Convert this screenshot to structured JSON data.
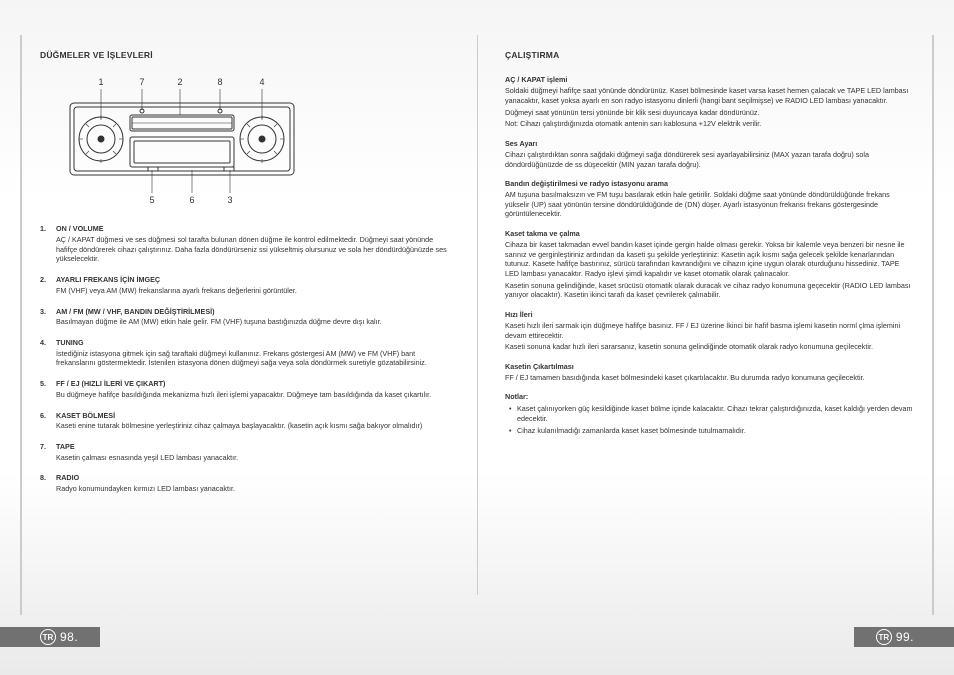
{
  "left": {
    "title": "DÜĞMELER VE İŞLEVLERİ",
    "diagram_labels": [
      "1",
      "7",
      "2",
      "8",
      "4",
      "5",
      "6",
      "3"
    ],
    "items": [
      {
        "n": "1.",
        "head": "ON / VOLUME",
        "body": "AÇ / KAPAT düğmesi ve ses düğmesi sol tarafta bulunan dönen düğme ile kontrol edilmektedir. Düğmeyi saat yönünde hafifçe döndürerek cihazı çalıştırınız. Daha fazla döndürürseniz ssi yükseltmiş olursunuz ve sola her döndürdüğünüzde ses yükselecektir."
      },
      {
        "n": "2.",
        "head": "AYARLI FREKANS İÇİN İMGEÇ",
        "body": "FM (VHF) veya AM (MW) frekanslarına ayarlı frekans değerlerini görüntüler."
      },
      {
        "n": "3.",
        "head": "AM / FM (MW / VHF, BANDIN DEĞİŞTİRİLMESİ)",
        "body": "Basılmayan düğme ile AM (MW) etkin hale gelir. FM (VHF) tuşuna bastığınızda düğme devre dışı kalır."
      },
      {
        "n": "4.",
        "head": "TUNING",
        "body": "İstediğiniz istasyona gitmek için sağ taraftaki düğmeyi kullanınız. Frekans göstergesi AM (MW) ve FM (VHF) bant frekanslarını göstermektedir. İstenilen istasyona dönen düğmeyi sağa veya sola döndürmek suretiyle gözatabilirsiniz."
      },
      {
        "n": "5.",
        "head": "FF / EJ (HIZLI İLERİ VE ÇIKART)",
        "body": "Bu düğmeye hafifçe basıldığında mekanizma hızlı ileri işlemi yapacaktır. Düğmeye tam basıldığında da kaset çıkartılır."
      },
      {
        "n": "6.",
        "head": "KASET BÖLMESİ",
        "body": "Kaseti enine tutarak bölmesine yerleştiriniz cihaz çalmaya başlayacaktır. (kasetin açık kısmı sağa bakıyor olmalıdır)"
      },
      {
        "n": "7.",
        "head": "TAPE",
        "body": "Kasetin çalması esnasında yeşil LED lambası yanacaktır."
      },
      {
        "n": "8.",
        "head": "RADIO",
        "body": "Radyo konumundayken kırmızı LED lambası yanacaktır."
      }
    ]
  },
  "right": {
    "title": "ÇALIŞTIRMA",
    "sections": [
      {
        "head": "AÇ / KAPAT işlemi",
        "body": "Soldaki düğmeyi hafifçe saat yönünde döndürünüz. Kaset bölmesinde kaset varsa kaset hemen çalacak ve TAPE LED lambası yanacaktır, kaset yoksa ayarlı en son radyo istasyonu dinlerli (hangi bant seçilmişse) ve RADIO LED lambası yanacaktır.\nDüğmeyi saat yönünün tersi yönünde bir klik sesi duyuncaya kadar döndürünüz.\nNot: Cihazı çalıştırdığınızda otomatik antenin sarı kablosuna +12V elektrik verilir."
      },
      {
        "head": "Ses Ayarı",
        "body": "Cihazı çalıştırdıktan sonra sağdaki düğmeyi sağa döndürerek sesi ayarlayabilirsiniz (MAX yazan tarafa doğru) sola döndürdüğünüzde de ss düşecektir (MIN yazan tarafa doğru)."
      },
      {
        "head": "Bandın değiştirilmesi ve radyo istasyonu arama",
        "body": "AM tuşuna basılmaksızın ve FM tuşu basılarak etkin hale getirilir. Soldaki düğme saat yönünde döndürüldüğünde  frekans yükselir (UP) saat yönünün tersine döndürüldüğünde de (DN) düşer. Ayarlı istasyonun frekansı frekans göstergesinde görüntülenecektir."
      },
      {
        "head": "Kaset takma ve çalma",
        "body": "Cihaza bir kaset takmadan evvel bandın kaset içinde gergin halde olması gerekir. Yoksa bir kalemle veya benzeri bir nesne ile sarınız ve gerginleştiriniz ardından da kaseti şu şekilde yerleştiriniz: Kasetin açık kısmı sağa gelecek şekilde kenarlarından tutunuz. Kasete hafifçe bastırınız, sürücü tarafından kavrandığını ve cihazın içine uygun olarak oturduğunu hissediniz. TAPE LED lambası yanacaktır. Radyo işlevi şimdi kapalıdır ve kaset otomatik olarak çalınacakır.\nKasetin sonuna gelindiğinde, kaset srücüsü otomatik olarak duracak ve cihaz radyo konumuna geçecektir (RADIO LED lambası yanıyor olacaktır). Kasetin ikinci tarafı da kaset çevrilerek çalınabilir."
      },
      {
        "head": "Hızı İleri",
        "body": "Kaseti hızlı ileri sarmak için düğmeye hafifçe basınız. FF / EJ üzerine İkinci bir hafif basma işlemi kasetin norml çlma işlemini devam ettirecektir.\nKaseti sonuna kadar hızlı ileri sararsanız, kasetin sonuna gelindiğinde otomatik olarak radyo konumuna geçilecektir."
      },
      {
        "head": "Kasetin Çıkartılması",
        "body": "FF / EJ tamamen basıdığında kaset bölmesindeki kaset çıkartılacaktır. Bu durumda radyo konumuna geçilecektir."
      },
      {
        "head": "Notlar:",
        "notes": [
          "Kaset çalınıyorken güç kesildiğinde kaset bölme içinde kalacaktır. Cihazı tekrar çalıştırdığınızda, kaset kaldığı yerden devam edecektir.",
          "Cihaz kulanılmadığı zamanlarda kaset kaset bölmesinde tutulmamalıdır."
        ]
      }
    ]
  },
  "footer": {
    "badge": "TR",
    "page_left": "98.",
    "page_right": "99."
  }
}
